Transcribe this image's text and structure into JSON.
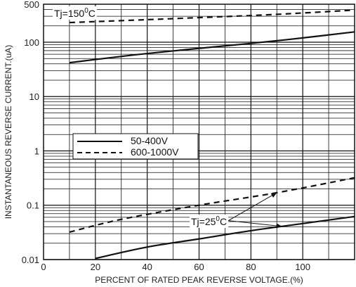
{
  "chart_data": {
    "type": "line",
    "title": "",
    "xlabel": "PERCENT OF RATED PEAK REVERSE VOLTAGE.(%)",
    "ylabel": "INSTANTANEOUS REVERSE CURRENT.(uA)",
    "xlim": [
      0,
      120
    ],
    "ylim": [
      0.01,
      500
    ],
    "y_scale": "log",
    "grid": true,
    "x_ticks": [
      "0",
      "20",
      "40",
      "60",
      "80",
      "100"
    ],
    "y_ticks": [
      "0.01",
      "0.1",
      "1",
      "10",
      "100",
      "500"
    ],
    "legend": {
      "placement": "center-left",
      "entries": [
        {
          "label": "50-400V",
          "style": "solid"
        },
        {
          "label": "600-1000V",
          "style": "dashed"
        }
      ]
    },
    "annotations": {
      "tj_150": {
        "prefix": "Tj=150",
        "sup": "0",
        "suffix": "C"
      },
      "tj_25": {
        "prefix": "Tj=25",
        "sup": "0",
        "suffix": "C"
      }
    },
    "series": [
      {
        "name": "50-400V",
        "group": "Tj=150C",
        "style": "solid",
        "x": [
          10,
          40,
          80,
          100,
          120
        ],
        "y": [
          42,
          62,
          95,
          120,
          155
        ]
      },
      {
        "name": "600-1000V",
        "group": "Tj=150C",
        "style": "dashed",
        "x": [
          10,
          40,
          80,
          100,
          120
        ],
        "y": [
          230,
          260,
          310,
          345,
          390
        ]
      },
      {
        "name": "50-400V",
        "group": "Tj=25C",
        "style": "solid",
        "x": [
          20,
          40,
          60,
          80,
          100,
          120
        ],
        "y": [
          0.0105,
          0.017,
          0.024,
          0.034,
          0.046,
          0.062
        ]
      },
      {
        "name": "600-1000V",
        "group": "Tj=25C",
        "style": "dashed",
        "x": [
          10,
          30,
          60,
          90,
          120
        ],
        "y": [
          0.032,
          0.055,
          0.1,
          0.17,
          0.32
        ]
      }
    ]
  }
}
